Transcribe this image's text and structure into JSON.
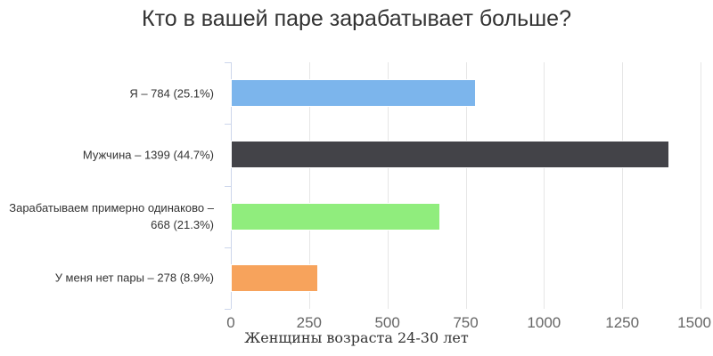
{
  "chart_data": {
    "type": "bar",
    "orientation": "horizontal",
    "title": "Кто в вашей паре зарабатывает больше?",
    "xlabel": "Женщины возраста 24-30 лет",
    "ylabel": "",
    "categories": [
      "Я",
      "Мужчина",
      "Зарабатываем примерно одинаково",
      "У меня нет пары"
    ],
    "category_labels": [
      "Я – 784 (25.1%)",
      "Мужчина – 1399 (44.7%)",
      "Зарабатываем примерно одинаково – 668 (21.3%)",
      "У меня нет пары – 278 (8.9%)"
    ],
    "values": [
      784,
      1399,
      668,
      278
    ],
    "percents": [
      25.1,
      44.7,
      21.3,
      8.9
    ],
    "bar_colors": [
      "#7cb5ec",
      "#434348",
      "#90ed7d",
      "#f7a35c"
    ],
    "xlim": [
      0,
      1500
    ],
    "x_ticks": [
      0,
      250,
      500,
      750,
      1000,
      1250,
      1500
    ],
    "grid": true,
    "legend": "none"
  },
  "styles": {
    "background": "#ffffff",
    "grid_color": "#e6e6e6",
    "axis_color": "#ccd6eb",
    "title_color": "#333333",
    "category_label_color": "#333333",
    "tick_label_color": "#666666"
  }
}
